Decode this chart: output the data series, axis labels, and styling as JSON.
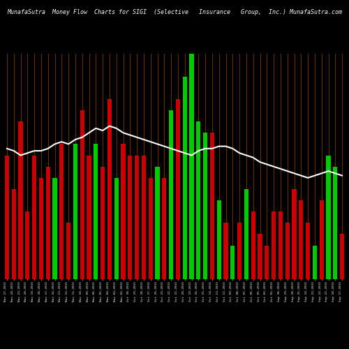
{
  "title_left": "MunafaSutra  Money Flow  Charts for SIGI",
  "title_right": "(Selective   Insurance   Group,  Inc.) MunafaSutra.com",
  "background_color": "#000000",
  "bar_color_positive": "#00cc00",
  "bar_color_negative": "#cc0000",
  "line_color": "#ffffff",
  "orange_line_color": "#8B4500",
  "categories": [
    "Nov 27,2015",
    "Nov 24,2015",
    "Nov 23,2015",
    "Nov 20,2015",
    "Nov 19,2015",
    "Nov 18,2015",
    "Nov 17,2015",
    "Nov 16,2015",
    "Nov 13,2015",
    "Nov 12,2015",
    "Nov 11,2015",
    "Nov 10,2015",
    "Nov 09,2015",
    "Nov 06,2015",
    "Nov 05,2015",
    "Nov 04,2015",
    "Nov 03,2015",
    "Nov 02,2015",
    "Oct 30,2015",
    "Oct 29,2015",
    "Oct 28,2015",
    "Oct 27,2015",
    "Oct 26,2015",
    "Oct 23,2015",
    "Oct 22,2015",
    "Oct 21,2015",
    "Oct 20,2015",
    "Oct 19,2015",
    "Oct 16,2015",
    "Oct 15,2015",
    "Oct 14,2015",
    "Oct 13,2015",
    "Oct 12,2015",
    "Oct 09,2015",
    "Oct 08,2015",
    "Oct 07,2015",
    "Oct 06,2015",
    "Oct 05,2015",
    "Oct 02,2015",
    "Oct 01,2015",
    "Sep 30,2015",
    "Sep 29,2015",
    "Sep 28,2015",
    "Sep 25,2015",
    "Sep 24,2015",
    "Sep 23,2015",
    "Sep 22,2015",
    "Sep 21,2015",
    "Sep 18,2015",
    "Sep 17,2015"
  ],
  "bar_heights": [
    55,
    40,
    70,
    30,
    55,
    45,
    50,
    45,
    60,
    25,
    60,
    75,
    55,
    60,
    50,
    80,
    45,
    60,
    55,
    55,
    55,
    45,
    50,
    45,
    75,
    80,
    90,
    100,
    70,
    65,
    65,
    35,
    25,
    15,
    25,
    40,
    30,
    20,
    15,
    30,
    30,
    25,
    40,
    35,
    25,
    15,
    35,
    55,
    50,
    20
  ],
  "bar_colors": [
    "red",
    "red",
    "red",
    "red",
    "red",
    "red",
    "red",
    "green",
    "red",
    "red",
    "green",
    "red",
    "red",
    "green",
    "red",
    "red",
    "green",
    "red",
    "red",
    "red",
    "red",
    "red",
    "green",
    "red",
    "green",
    "red",
    "green",
    "green",
    "green",
    "green",
    "red",
    "green",
    "red",
    "green",
    "red",
    "green",
    "red",
    "red",
    "red",
    "red",
    "red",
    "red",
    "red",
    "red",
    "red",
    "green",
    "red",
    "green",
    "green",
    "red"
  ],
  "line_y": [
    58,
    57,
    55,
    56,
    57,
    57,
    58,
    60,
    61,
    60,
    62,
    63,
    65,
    67,
    66,
    68,
    67,
    65,
    64,
    63,
    62,
    61,
    60,
    59,
    58,
    57,
    56,
    55,
    57,
    58,
    58,
    59,
    59,
    58,
    56,
    55,
    54,
    52,
    51,
    50,
    49,
    48,
    47,
    46,
    45,
    46,
    47,
    48,
    47,
    46
  ]
}
